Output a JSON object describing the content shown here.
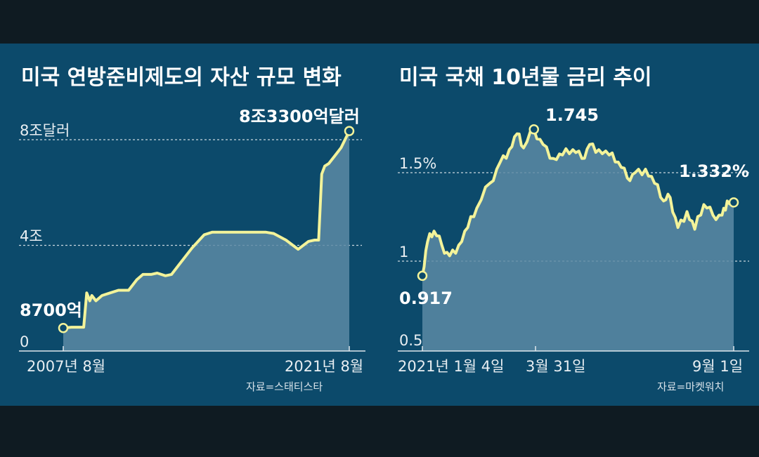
{
  "chart_data": [
    {
      "type": "area",
      "title": "미국 연방준비제도의 자산 규모 변화",
      "y_ticks": [
        "8조달러",
        "4조",
        "0"
      ],
      "y_tick_values": [
        8,
        4,
        0
      ],
      "ylim": [
        0,
        8.3
      ],
      "x_ticks": [
        "2007년 8월",
        "2021년 8월"
      ],
      "start_label": "8700억",
      "end_label": "8조3300억달러",
      "source": "자료=스태티스타",
      "x": [
        2007.6,
        2008.0,
        2008.6,
        2008.75,
        2008.9,
        2009.0,
        2009.2,
        2009.5,
        2009.9,
        2010.3,
        2010.8,
        2011.2,
        2011.5,
        2011.9,
        2012.2,
        2012.6,
        2012.9,
        2013.3,
        2013.9,
        2014.5,
        2014.9,
        2015.5,
        2016.5,
        2017.5,
        2017.9,
        2018.5,
        2019.1,
        2019.6,
        2019.9,
        2020.1,
        2020.25,
        2020.4,
        2020.6,
        2020.9,
        2021.2,
        2021.6
      ],
      "values": [
        0.87,
        0.9,
        0.9,
        2.2,
        1.9,
        2.1,
        1.9,
        2.1,
        2.2,
        2.3,
        2.3,
        2.7,
        2.9,
        2.9,
        2.95,
        2.85,
        2.9,
        3.3,
        3.9,
        4.4,
        4.5,
        4.5,
        4.5,
        4.5,
        4.45,
        4.2,
        3.85,
        4.15,
        4.2,
        4.2,
        6.7,
        7.0,
        7.1,
        7.4,
        7.7,
        8.33
      ]
    },
    {
      "type": "area",
      "title": "미국 국채 10년물 금리 추이",
      "y_ticks": [
        "1.5%",
        "1",
        "0.5"
      ],
      "y_tick_values": [
        1.5,
        1.0,
        0.5
      ],
      "ylim": [
        0.5,
        1.95
      ],
      "x_ticks": [
        "2021년 1월 4일",
        "3월 31일",
        "9월 1일"
      ],
      "start_label": "0.917",
      "peak_label": "1.745",
      "end_label": "1.332%",
      "source": "자료=마켓워치",
      "x": [
        "2021-01-04",
        "2021-01-08",
        "2021-01-13",
        "2021-01-19",
        "2021-01-25",
        "2021-02-01",
        "2021-02-08",
        "2021-02-15",
        "2021-02-25",
        "2021-03-05",
        "2021-03-12",
        "2021-03-18",
        "2021-03-23",
        "2021-03-31",
        "2021-04-07",
        "2021-04-15",
        "2021-04-22",
        "2021-04-30",
        "2021-05-07",
        "2021-05-13",
        "2021-05-20",
        "2021-05-28",
        "2021-06-04",
        "2021-06-11",
        "2021-06-17",
        "2021-06-25",
        "2021-07-02",
        "2021-07-09",
        "2021-07-14",
        "2021-07-20",
        "2021-07-27",
        "2021-08-02",
        "2021-08-09",
        "2021-08-16",
        "2021-08-23",
        "2021-08-27",
        "2021-09-01"
      ],
      "values": [
        0.917,
        1.11,
        1.17,
        1.09,
        1.03,
        1.09,
        1.19,
        1.3,
        1.44,
        1.56,
        1.63,
        1.72,
        1.64,
        1.745,
        1.66,
        1.58,
        1.6,
        1.63,
        1.58,
        1.66,
        1.63,
        1.6,
        1.56,
        1.47,
        1.5,
        1.52,
        1.44,
        1.34,
        1.36,
        1.19,
        1.28,
        1.18,
        1.32,
        1.26,
        1.26,
        1.34,
        1.332
      ]
    }
  ]
}
